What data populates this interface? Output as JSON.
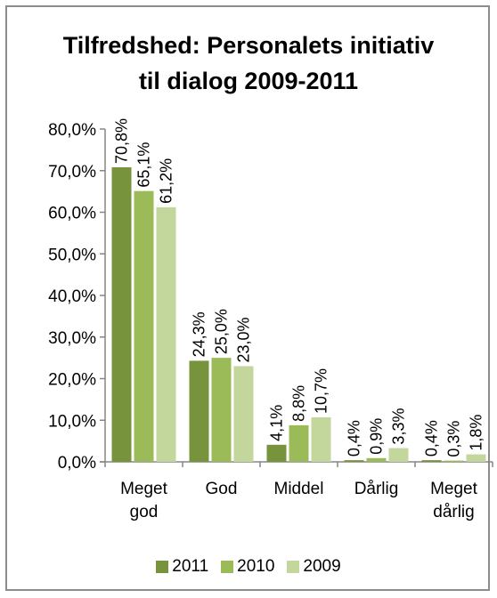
{
  "chart_data": {
    "type": "bar",
    "title_lines": [
      "Tilfredshed: Personalets initiativ",
      "til dialog 2009-2011"
    ],
    "categories": [
      [
        "Meget",
        "god"
      ],
      [
        "God"
      ],
      [
        "Middel"
      ],
      [
        "Dårlig"
      ],
      [
        "Meget",
        "dårlig"
      ]
    ],
    "series": [
      {
        "name": "2011",
        "color": "#77933c",
        "values": [
          70.8,
          24.3,
          4.1,
          0.4,
          0.4
        ],
        "labels": [
          "70,8%",
          "24,3%",
          "4,1%",
          "0,4%",
          "0,4%"
        ]
      },
      {
        "name": "2010",
        "color": "#9bbb59",
        "values": [
          65.1,
          25.0,
          8.8,
          0.9,
          0.3
        ],
        "labels": [
          "65,1%",
          "25,0%",
          "8,8%",
          "0,9%",
          "0,3%"
        ]
      },
      {
        "name": "2009",
        "color": "#c3d69b",
        "values": [
          61.2,
          23.0,
          10.7,
          3.3,
          1.8
        ],
        "labels": [
          "61,2%",
          "23,0%",
          "10,7%",
          "3,3%",
          "1,8%"
        ]
      }
    ],
    "ylim": [
      0,
      80
    ],
    "yticks": [
      0,
      10,
      20,
      30,
      40,
      50,
      60,
      70,
      80
    ],
    "ytick_labels": [
      "0,0%",
      "10,0%",
      "20,0%",
      "30,0%",
      "40,0%",
      "50,0%",
      "60,0%",
      "70,0%",
      "80,0%"
    ],
    "legend_position": "bottom",
    "grid": false
  }
}
